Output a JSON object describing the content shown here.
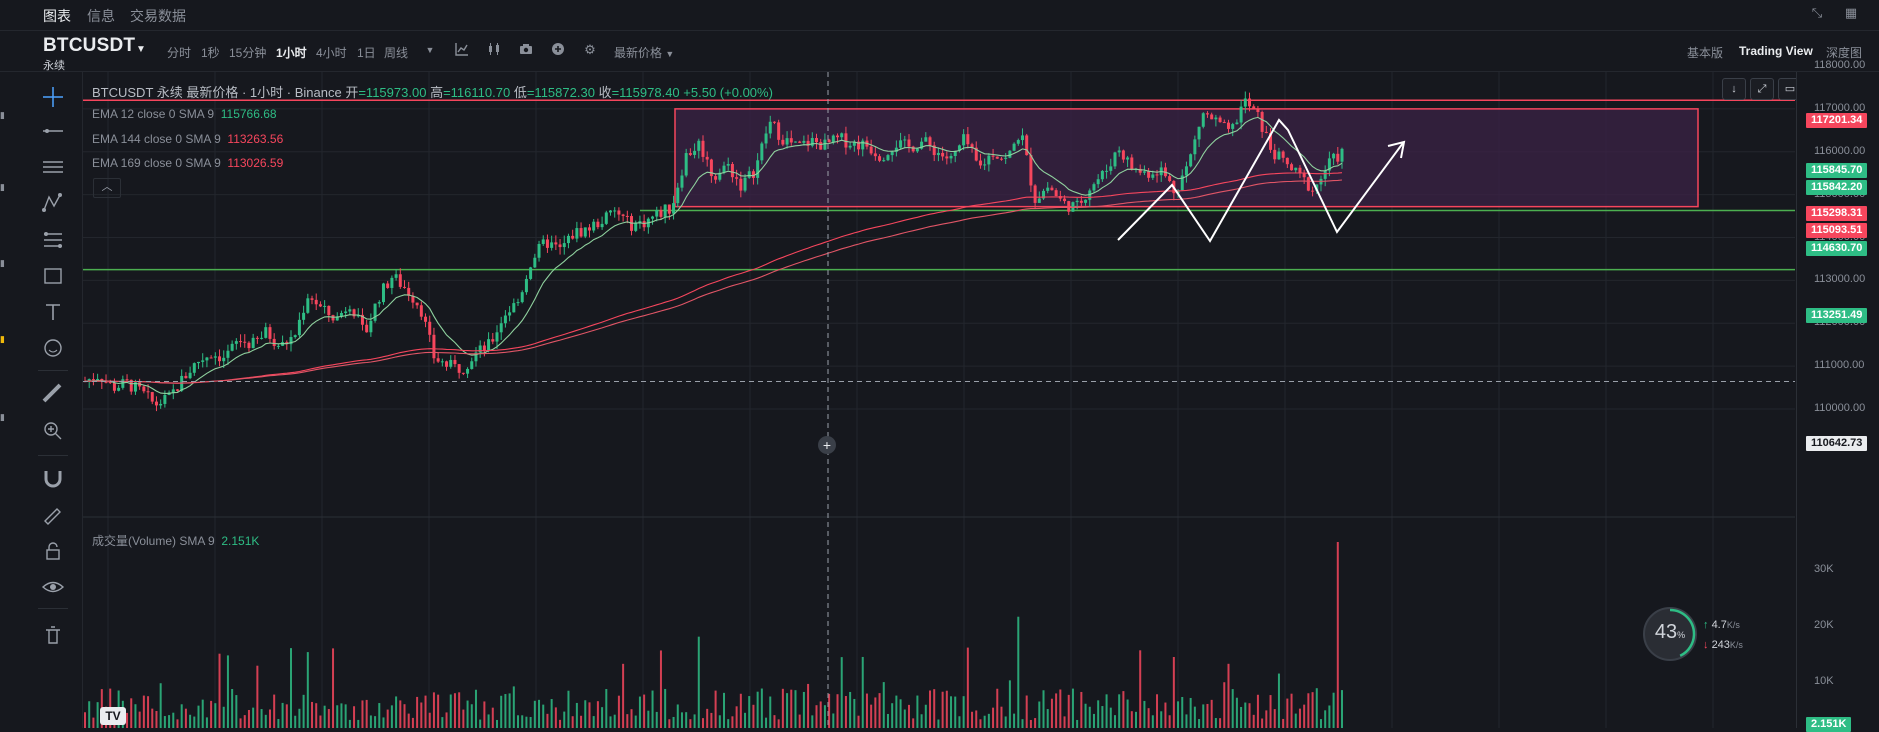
{
  "tabs": [
    {
      "label": "图表",
      "active": true
    },
    {
      "label": "信息",
      "active": false
    },
    {
      "label": "交易数据",
      "active": false
    }
  ],
  "window_icons": [
    "collapse-icon",
    "grid-icon"
  ],
  "symbol": {
    "name": "BTCUSDT",
    "contract_type": "永续"
  },
  "intervals": [
    {
      "label": "分时",
      "active": false
    },
    {
      "label": "1秒",
      "active": false
    },
    {
      "label": "15分钟",
      "active": false
    },
    {
      "label": "1小时",
      "active": true
    },
    {
      "label": "4小时",
      "active": false
    },
    {
      "label": "1日",
      "active": false
    },
    {
      "label": "周线",
      "active": false
    }
  ],
  "toolbar_icons": [
    "dropdown-caret-icon",
    "indicators-icon",
    "candle-style-icon",
    "camera-icon",
    "add-icon",
    "settings-icon"
  ],
  "price_type_label": "最新价格",
  "view_modes": [
    {
      "label": "基本版",
      "active": false
    },
    {
      "label": "Trading View",
      "active": true
    },
    {
      "label": "深度图",
      "active": false
    }
  ],
  "left_tools": [
    "crosshair-icon",
    "horizontal-line-icon",
    "parallel-channel-icon",
    "pattern-icon",
    "fib-icon",
    "rectangle-icon",
    "text-icon",
    "emoji-icon",
    "ruler-icon",
    "zoom-icon",
    "magnet-icon",
    "pencil-lock-icon",
    "lock-icon",
    "eye-icon",
    "trash-icon"
  ],
  "legend": {
    "title": "BTCUSDT 永续 最新价格 · 1小时 · Binance",
    "ohlc": [
      {
        "k": "开",
        "v": "=115973.00"
      },
      {
        "k": "高",
        "v": "=116110.70"
      },
      {
        "k": "低",
        "v": "=115872.30"
      },
      {
        "k": "收",
        "v": "=115978.40"
      }
    ],
    "change": "+5.50 (+0.00%)",
    "ema": [
      {
        "label": "EMA 12 close 0 SMA 9",
        "value": "115766.68",
        "color": "#2ebd85"
      },
      {
        "label": "EMA 144 close 0 SMA 9",
        "value": "113263.56",
        "color": "#f6465d"
      },
      {
        "label": "EMA 169 close 0 SMA 9",
        "value": "113026.59",
        "color": "#f6465d"
      }
    ],
    "volume": {
      "label": "成交量(Volume)  SMA 9",
      "value": "2.151K"
    }
  },
  "chart_controls": [
    "scroll-down-icon",
    "fullscreen-icon",
    "restore-icon"
  ],
  "price_axis": {
    "ticks": [
      "118000.00",
      "117000.00",
      "116000.00",
      "115000.00",
      "114000.00",
      "113000.00",
      "112000.00",
      "111000.00",
      "110000.00"
    ],
    "volume_ticks": [
      "30K",
      "20K",
      "10K"
    ],
    "badges": [
      {
        "value": "117201.34",
        "color": "#f6465d"
      },
      {
        "value": "115845.70",
        "color": "#2ebd85"
      },
      {
        "value": "115842.20",
        "color": "#2ebd85"
      },
      {
        "value": "115298.31",
        "color": "#f6465d"
      },
      {
        "value": "115093.51",
        "color": "#f6465d"
      },
      {
        "value": "114630.70",
        "color": "#2ebd85"
      },
      {
        "value": "113251.49",
        "color": "#2ebd85"
      },
      {
        "value": "110642.73",
        "color": "#eaecef"
      },
      {
        "value": "2.151K",
        "color": "#2ebd85"
      }
    ]
  },
  "horizontal_lines": [
    {
      "price": 117201.34,
      "color": "#f6465d"
    },
    {
      "price": 114630.7,
      "color": "#4caf50"
    },
    {
      "price": 113251.49,
      "color": "#4caf50"
    }
  ],
  "range_box": {
    "top_price": 117000,
    "bottom_price": 114720,
    "fill": "#3b2245",
    "stroke": "#f6465d"
  },
  "crosshair": {
    "price": 110642.73
  },
  "network_widget": {
    "percent": "43",
    "percent_unit": "%",
    "upload": "4.7",
    "download": "243",
    "unit": "K/s"
  },
  "chart_data": {
    "type": "candlestick",
    "interval": "1h",
    "ylim": [
      109700,
      118150
    ],
    "price_path": [
      110650,
      110800,
      110500,
      110600,
      110400,
      110100,
      110250,
      110700,
      111100,
      111300,
      111200,
      111600,
      111500,
      111800,
      111450,
      111700,
      112700,
      112300,
      112100,
      112500,
      111700,
      112600,
      113100,
      112800,
      112400,
      111200,
      111000,
      110950,
      111300,
      111500,
      112200,
      112500,
      113500,
      113900,
      113700,
      114100,
      114200,
      114400,
      114600,
      114300,
      114350,
      114550,
      114700,
      115900,
      116200,
      115400,
      115700,
      115200,
      115600,
      116700,
      116300,
      116100,
      116250,
      116150,
      116300,
      116200,
      116150,
      115900,
      116200,
      116100,
      116250,
      116000,
      115800,
      116300,
      115600,
      116000,
      115800,
      116500,
      114900,
      115200,
      114800,
      114700,
      115200,
      115500,
      116100,
      115600,
      115500,
      115600,
      115100,
      115700,
      116900,
      116700,
      116400,
      117200,
      116800,
      116000,
      115700,
      115400,
      115100,
      115700,
      115978.4
    ],
    "ema_path": {
      "ema12_start": 110700,
      "ema12_end": 115766.68,
      "ema144_start": 110500,
      "ema144_end": 113263.56,
      "ema169_start": 110450,
      "ema169_end": 113026.59
    },
    "volume_max": 35000,
    "volume_spike": 35000
  }
}
